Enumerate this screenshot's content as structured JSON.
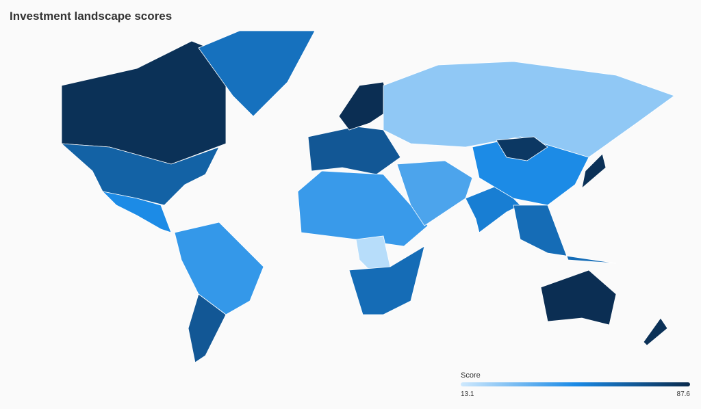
{
  "map": {
    "title": "Investment landscape scores",
    "legend": {
      "label": "Score",
      "min": 13.1,
      "max": 87.6
    },
    "colors": [
      "#cfe9fd",
      "#1a8ae6",
      "#0a2a4c"
    ],
    "scores": [
      85,
      66,
      60,
      50,
      45,
      70,
      70,
      86,
      26,
      44,
      18,
      62,
      40,
      55,
      50,
      82,
      62,
      86,
      85,
      85
    ]
  }
}
